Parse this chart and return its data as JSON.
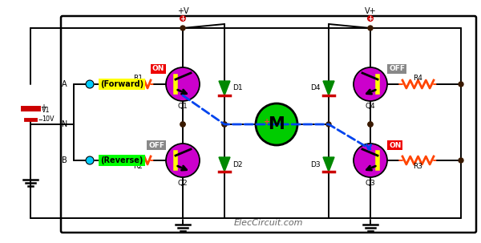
{
  "bg": "#ffffff",
  "wire": "#000000",
  "trans_fill": "#cc00cc",
  "motor_fill": "#00cc00",
  "res_color": "#ff4400",
  "diode_fill": "#008800",
  "diode_bar": "#cc0000",
  "node_fill": "#3a1a00",
  "on_fill": "#ee0000",
  "off_fill": "#888888",
  "fwd_fill": "#ffff00",
  "rev_fill": "#00ff00",
  "led_fill": "#00ccff",
  "bat_fill": "#cc0000",
  "blue_dash": "#0044ee",
  "footer": "ElecCircuit.com",
  "vL": "+V",
  "vR": "V+",
  "figw": 6.0,
  "figh": 3.03,
  "dpi": 100
}
